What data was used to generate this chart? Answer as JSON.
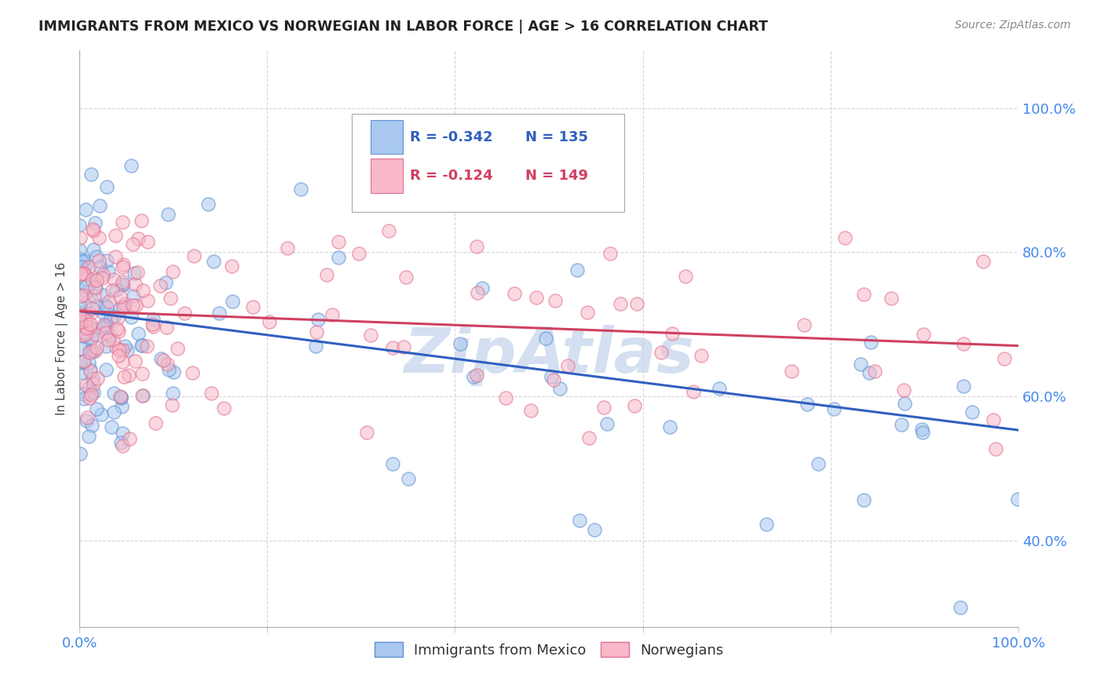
{
  "title": "IMMIGRANTS FROM MEXICO VS NORWEGIAN IN LABOR FORCE | AGE > 16 CORRELATION CHART",
  "source": "Source: ZipAtlas.com",
  "ylabel": "In Labor Force | Age > 16",
  "xlim": [
    0.0,
    1.0
  ],
  "ylim": [
    0.28,
    1.08
  ],
  "ytick_positions": [
    0.4,
    0.6,
    0.8,
    1.0
  ],
  "yticklabels": [
    "40.0%",
    "60.0%",
    "80.0%",
    "100.0%"
  ],
  "legend_r_mexico": "R = -0.342",
  "legend_n_mexico": "N = 135",
  "legend_r_norweg": "R = -0.124",
  "legend_n_norweg": "N = 149",
  "color_mexico_fill": "#a8c8f0",
  "color_mexico_edge": "#6090d0",
  "color_norweg_fill": "#f8b8c8",
  "color_norweg_edge": "#e07090",
  "color_mexico_line": "#3060c0",
  "color_norweg_line": "#d04060",
  "color_axis_ticks": "#4488ee",
  "title_color": "#222222",
  "source_color": "#888888",
  "background": "#ffffff",
  "grid_color": "#cccccc",
  "watermark_color": "#b8cce8",
  "scatter_size": 150,
  "scatter_alpha": 0.55,
  "mexico_line_intercept": 0.718,
  "mexico_line_slope": -0.165,
  "norweg_line_intercept": 0.718,
  "norweg_line_slope": -0.048
}
